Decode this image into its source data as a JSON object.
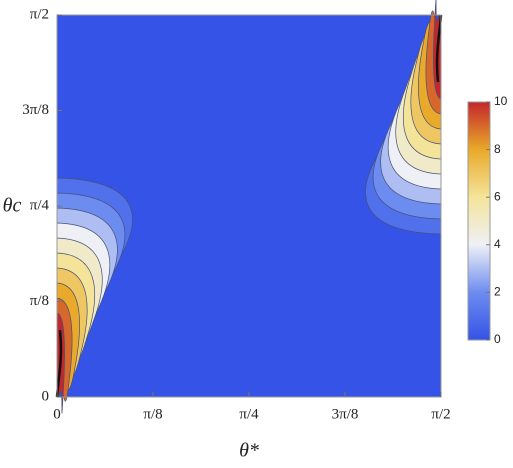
{
  "chart_data": {
    "type": "contour",
    "x_label": "θ*",
    "y_label": "θc",
    "xlim": [
      0,
      1.5708
    ],
    "ylim": [
      0,
      1.5708
    ],
    "xticks": [
      0,
      {
        "value": 0.3927,
        "label": "π/8"
      },
      {
        "value": 0.7854,
        "label": "π/4"
      },
      {
        "value": 1.1781,
        "label": "3π/8"
      },
      {
        "value": 1.5708,
        "label": "π/2"
      }
    ],
    "yticks": [
      0,
      {
        "value": 0.3927,
        "label": "π/8"
      },
      {
        "value": 0.7854,
        "label": "π/4"
      },
      {
        "value": 1.1781,
        "label": "3π/8"
      },
      {
        "value": 1.5708,
        "label": "π/2"
      }
    ],
    "colorbar": {
      "lim": [
        0,
        10
      ],
      "ticks": [
        0,
        2,
        4,
        6,
        8,
        10
      ],
      "colors": [
        "#3553e6",
        "#6d8cf0",
        "#eef0f6",
        "#f4e49a",
        "#e9a92a",
        "#c3272b"
      ]
    }
  }
}
